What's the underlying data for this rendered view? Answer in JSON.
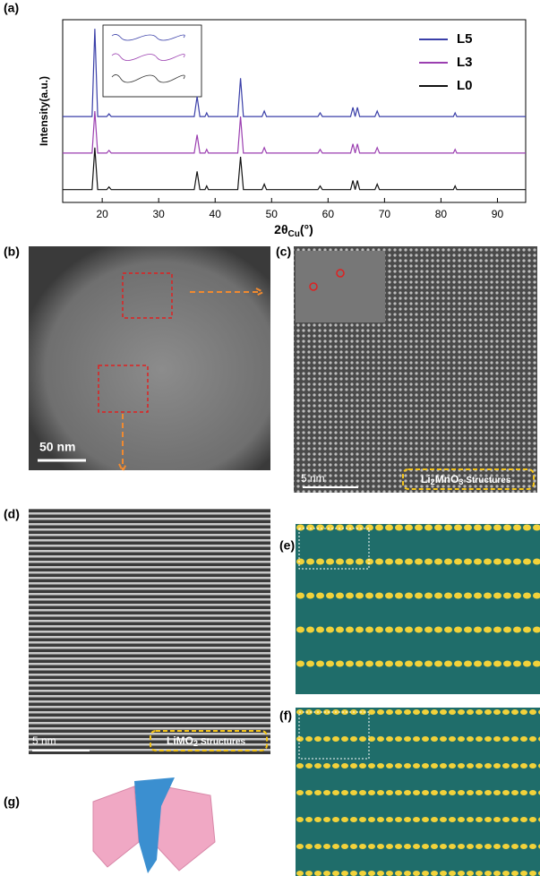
{
  "chart_data": {
    "type": "line",
    "panel": "(a)",
    "ylabel": "Intensity(a.u.)",
    "xlabel": {
      "main": "2θ",
      "sub": "Cu",
      "unit": "(°)"
    },
    "x": [
      13,
      18.2,
      18.7,
      19.2,
      20.8,
      21.2,
      21.6,
      36.3,
      36.8,
      37.3,
      38.2,
      38.5,
      38.8,
      44.0,
      44.5,
      45.0,
      48.3,
      48.7,
      49.1,
      58.2,
      58.6,
      59.0,
      64.0,
      64.4,
      64.8,
      65.2,
      65.6,
      68.3,
      68.7,
      69.1,
      82.2,
      82.5,
      82.8,
      95
    ],
    "series": [
      {
        "name": "L5",
        "color": "#3a3fa8",
        "values": [
          47,
          47,
          95,
          47,
          47,
          48.5,
          47,
          47,
          58,
          47,
          47,
          49,
          47,
          47,
          68,
          47,
          47,
          50,
          47,
          47,
          49,
          47,
          47,
          52,
          47,
          52,
          47,
          47,
          50,
          47,
          47,
          49,
          47,
          47
        ]
      },
      {
        "name": "L3",
        "color": "#9b3fb0",
        "values": [
          27,
          27,
          50,
          27,
          27,
          28.5,
          27,
          27,
          37,
          27,
          27,
          29,
          27,
          27,
          47,
          27,
          27,
          30,
          27,
          27,
          29,
          27,
          27,
          32,
          27,
          32,
          27,
          27,
          30,
          27,
          27,
          29,
          27,
          27
        ]
      },
      {
        "name": "L0",
        "color": "#111111",
        "values": [
          7,
          7,
          30,
          7,
          7,
          8.5,
          7,
          7,
          17,
          7,
          7,
          9,
          7,
          7,
          25,
          7,
          7,
          10,
          7,
          7,
          9,
          7,
          7,
          12,
          7,
          12,
          7,
          7,
          10,
          7,
          7,
          9,
          7,
          7
        ]
      }
    ],
    "xlim": [
      13,
      95
    ],
    "xticks": [
      20,
      30,
      40,
      50,
      60,
      70,
      80,
      90
    ],
    "ylim": [
      0,
      100
    ],
    "legend": "upper right"
  },
  "panels": {
    "b": {
      "label": "(b)",
      "scale": "50 nm"
    },
    "c": {
      "label": "(c)",
      "scale": "5 nm",
      "structure": [
        "Li",
        "2",
        "MnO",
        "3",
        "Structures"
      ]
    },
    "d": {
      "label": "(d)",
      "scale": "5 nm",
      "structure": [
        "LiMO",
        "2",
        "Structures"
      ]
    },
    "e": {
      "label": "(e)"
    },
    "f": {
      "label": "(f)"
    },
    "g": {
      "label": "(g)"
    }
  }
}
